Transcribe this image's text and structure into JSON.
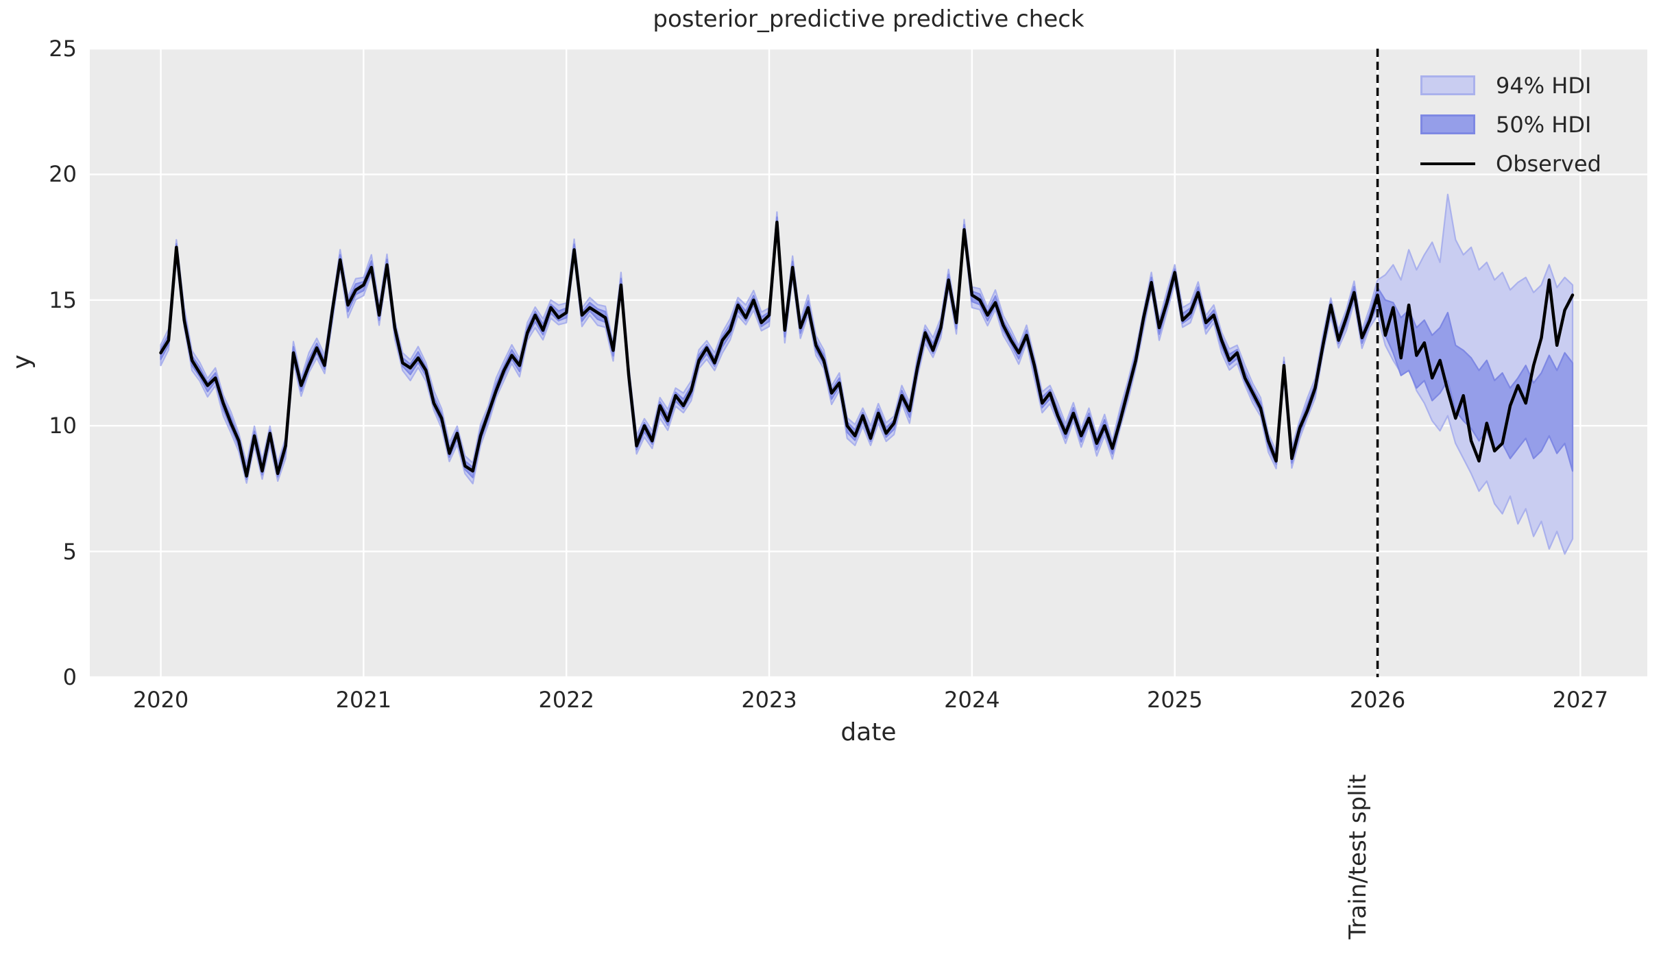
{
  "figure": {
    "title": "posterior_predictive predictive check"
  },
  "axes": {
    "xlabel": "date",
    "ylabel": "y",
    "x_ticks": [
      2020,
      2021,
      2022,
      2023,
      2024,
      2025,
      2026,
      2027
    ],
    "y_ticks": [
      0,
      5,
      10,
      15,
      20,
      25
    ],
    "xlim": [
      2019.65,
      2027.33
    ],
    "ylim": [
      0,
      25
    ]
  },
  "legend": {
    "items": [
      {
        "label": "94% HDI",
        "type": "patch"
      },
      {
        "label": "50% HDI",
        "type": "patch"
      },
      {
        "label": "Observed",
        "type": "line"
      }
    ]
  },
  "split": {
    "x": 2026.0,
    "label": "Train/test split"
  },
  "colors": {
    "plot_bg": "#ebebeb",
    "grid": "#ffffff",
    "observed": "#000000",
    "hdi94_fill": "#c9cdf1",
    "hdi94_edge": "#aab1ec",
    "hdi50_fill": "#959ee9",
    "hdi50_edge": "#7e88e3",
    "split_line": "#000000",
    "text": "#262626"
  },
  "chart_data": {
    "type": "line",
    "x_start": 2020.0,
    "x_step_years": 0.0384615,
    "n_points": 182,
    "split_index": 156,
    "series": [
      {
        "name": "Observed",
        "values": [
          12.9,
          13.4,
          17.1,
          14.2,
          12.6,
          12.1,
          11.6,
          11.9,
          10.9,
          10.1,
          9.4,
          8.0,
          9.6,
          8.2,
          9.7,
          8.1,
          9.2,
          12.9,
          11.6,
          12.4,
          13.1,
          12.4,
          14.6,
          16.6,
          14.8,
          15.4,
          15.6,
          16.3,
          14.4,
          16.4,
          13.9,
          12.5,
          12.3,
          12.7,
          12.2,
          10.9,
          10.3,
          8.9,
          9.7,
          8.4,
          8.2,
          9.6,
          10.5,
          11.4,
          12.2,
          12.8,
          12.4,
          13.7,
          14.4,
          13.8,
          14.7,
          14.3,
          14.5,
          17.0,
          14.4,
          14.7,
          14.5,
          14.3,
          13.0,
          15.6,
          12.0,
          9.2,
          10.0,
          9.4,
          10.8,
          10.2,
          11.2,
          10.8,
          11.4,
          12.6,
          13.1,
          12.5,
          13.4,
          13.8,
          14.8,
          14.3,
          15.0,
          14.1,
          14.4,
          18.1,
          13.8,
          16.3,
          13.9,
          14.7,
          13.2,
          12.6,
          11.3,
          11.7,
          10.0,
          9.6,
          10.4,
          9.5,
          10.5,
          9.7,
          10.1,
          11.2,
          10.6,
          12.3,
          13.7,
          13.0,
          13.9,
          15.8,
          14.1,
          17.8,
          15.2,
          15.0,
          14.4,
          14.9,
          14.0,
          13.4,
          12.9,
          13.6,
          12.4,
          10.9,
          11.3,
          10.4,
          9.7,
          10.5,
          9.6,
          10.3,
          9.3,
          10.0,
          9.1,
          10.2,
          11.4,
          12.6,
          14.3,
          15.7,
          13.9,
          14.9,
          16.1,
          14.2,
          14.5,
          15.3,
          14.1,
          14.4,
          13.4,
          12.6,
          12.9,
          11.9,
          11.3,
          10.7,
          9.4,
          8.6,
          12.4,
          8.7,
          9.9,
          10.6,
          11.5,
          13.2,
          14.8,
          13.4,
          14.3,
          15.3,
          13.5,
          14.2,
          15.2,
          13.6,
          14.7,
          12.7,
          14.8,
          12.8,
          13.3,
          11.9,
          12.6,
          11.4,
          10.3,
          11.2,
          9.4,
          8.6,
          10.1,
          9.0,
          9.3,
          10.8,
          11.6,
          10.9,
          12.4,
          13.5,
          15.8,
          13.2,
          14.6,
          15.2
        ]
      }
    ],
    "hdi94": {
      "train_half_width_cycle": [
        0.32,
        0.45,
        0.3,
        0.5,
        0.38,
        0.42,
        0.28,
        0.4
      ],
      "test_upper": [
        15.8,
        16.0,
        16.4,
        15.8,
        17.0,
        16.2,
        16.8,
        17.3,
        16.5,
        19.2,
        17.4,
        16.8,
        17.1,
        16.2,
        16.5,
        15.8,
        16.1,
        15.4,
        15.7,
        15.9,
        15.3,
        15.6,
        16.4,
        15.5,
        15.9,
        15.6
      ],
      "test_lower": [
        14.4,
        13.2,
        12.6,
        12.1,
        12.3,
        11.4,
        10.9,
        10.2,
        9.8,
        10.4,
        9.3,
        8.7,
        8.1,
        7.4,
        7.8,
        6.9,
        6.5,
        7.2,
        6.1,
        6.7,
        5.6,
        6.2,
        5.1,
        5.8,
        4.9,
        5.5
      ]
    },
    "hdi50": {
      "train_half_width_cycle": [
        0.15,
        0.24,
        0.13,
        0.26,
        0.18,
        0.22,
        0.12,
        0.2
      ],
      "test_upper": [
        15.5,
        15.0,
        14.9,
        14.3,
        14.6,
        13.9,
        14.2,
        13.6,
        13.9,
        14.5,
        13.2,
        13.0,
        12.7,
        12.2,
        12.6,
        11.8,
        12.1,
        11.5,
        11.9,
        12.4,
        11.7,
        12.1,
        12.8,
        12.2,
        12.9,
        12.5
      ],
      "test_lower": [
        14.8,
        13.6,
        12.9,
        12.0,
        12.2,
        11.5,
        11.8,
        11.0,
        11.3,
        11.8,
        10.6,
        10.2,
        9.9,
        9.4,
        9.8,
        9.0,
        9.3,
        8.7,
        9.1,
        9.5,
        8.7,
        9.0,
        9.6,
        8.9,
        9.3,
        8.2
      ]
    }
  }
}
